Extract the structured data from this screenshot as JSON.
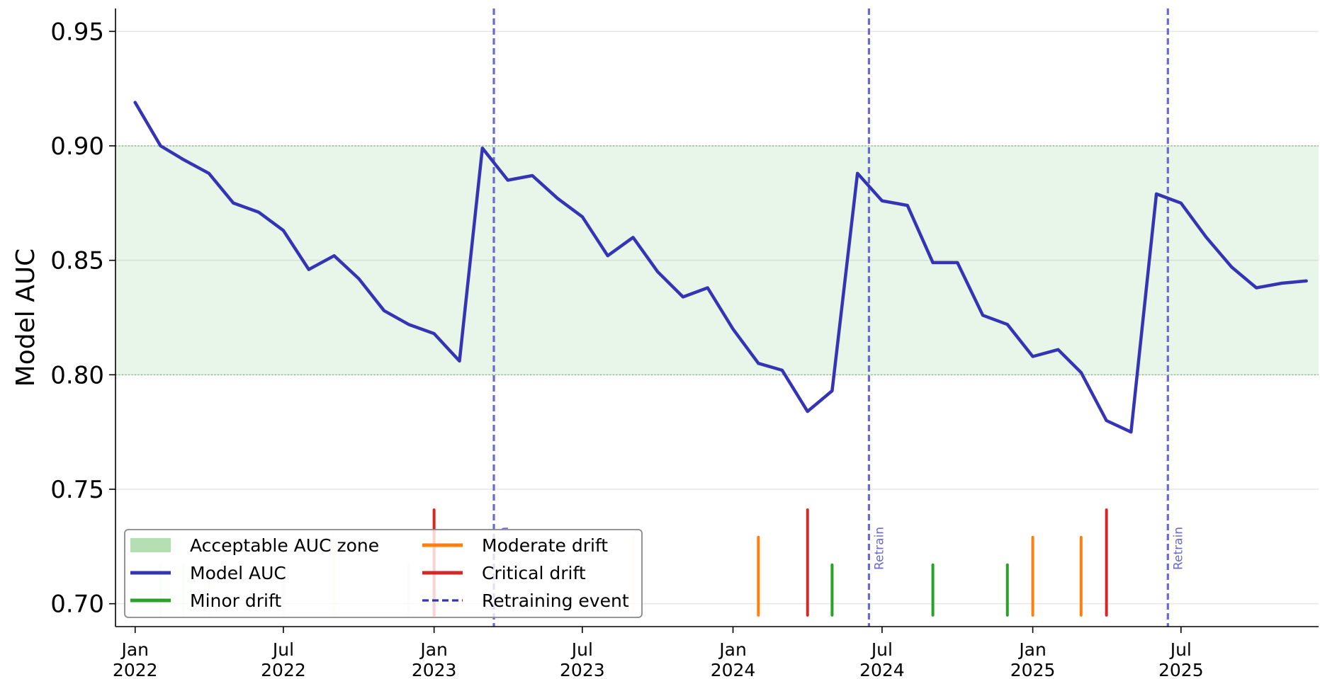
{
  "chart_data": {
    "type": "line",
    "title": "",
    "xlabel": "",
    "ylabel": "Model AUC",
    "x_unit": "month",
    "x_start": "2022-01",
    "xlim": [
      "2021-12-08",
      "2025-12-16"
    ],
    "ylim": [
      0.69,
      0.96
    ],
    "yticks": [
      0.7,
      0.75,
      0.8,
      0.85,
      0.9,
      0.95
    ],
    "xticks": [
      {
        "date": "2022-01",
        "label": [
          "Jan",
          "2022"
        ]
      },
      {
        "date": "2022-07",
        "label": [
          "Jul",
          "2022"
        ]
      },
      {
        "date": "2023-01",
        "label": [
          "Jan",
          "2023"
        ]
      },
      {
        "date": "2023-07",
        "label": [
          "Jul",
          "2023"
        ]
      },
      {
        "date": "2024-01",
        "label": [
          "Jan",
          "2024"
        ]
      },
      {
        "date": "2024-07",
        "label": [
          "Jul",
          "2024"
        ]
      },
      {
        "date": "2025-01",
        "label": [
          "Jan",
          "2025"
        ]
      },
      {
        "date": "2025-07",
        "label": [
          "Jul",
          "2025"
        ]
      }
    ],
    "grid": "horizontal",
    "acceptable_zone": {
      "name": "Acceptable AUC zone",
      "range": [
        0.8,
        0.9
      ],
      "color": "#e8f5e9",
      "edge_color": "#5fb35f"
    },
    "series": [
      {
        "name": "Model AUC",
        "color": "#3434b4",
        "x": [
          "2022-01",
          "2022-02",
          "2022-03",
          "2022-04",
          "2022-05",
          "2022-06",
          "2022-07",
          "2022-08",
          "2022-09",
          "2022-10",
          "2022-11",
          "2022-12",
          "2023-01",
          "2023-02",
          "2023-03",
          "2023-04",
          "2023-05",
          "2023-06",
          "2023-07",
          "2023-08",
          "2023-09",
          "2023-10",
          "2023-11",
          "2023-12",
          "2024-01",
          "2024-02",
          "2024-03",
          "2024-04",
          "2024-05",
          "2024-06",
          "2024-07",
          "2024-08",
          "2024-09",
          "2024-10",
          "2024-11",
          "2024-12",
          "2025-01",
          "2025-02",
          "2025-03",
          "2025-04",
          "2025-05",
          "2025-06",
          "2025-07",
          "2025-08",
          "2025-09",
          "2025-10",
          "2025-11",
          "2025-12"
        ],
        "values": [
          0.919,
          0.9,
          0.894,
          0.888,
          0.875,
          0.871,
          0.863,
          0.846,
          0.852,
          0.842,
          0.828,
          0.822,
          0.818,
          0.806,
          0.899,
          0.885,
          0.887,
          0.877,
          0.869,
          0.852,
          0.86,
          0.845,
          0.834,
          0.838,
          0.82,
          0.805,
          0.802,
          0.784,
          0.793,
          0.888,
          0.876,
          0.874,
          0.849,
          0.849,
          0.826,
          0.822,
          0.808,
          0.811,
          0.801,
          0.78,
          0.775,
          0.879,
          0.875,
          0.86,
          0.847,
          0.838,
          0.84,
          0.841
        ]
      }
    ],
    "drift_events": [
      {
        "date": "2022-02",
        "severity": "minor",
        "faint": true
      },
      {
        "date": "2022-03",
        "severity": "minor",
        "faint": true
      },
      {
        "date": "2022-04",
        "severity": "minor",
        "faint": true
      },
      {
        "date": "2022-07",
        "severity": "minor",
        "faint": true
      },
      {
        "date": "2022-09",
        "severity": "moderate",
        "faint": true
      },
      {
        "date": "2022-12",
        "severity": "minor",
        "faint": true
      },
      {
        "date": "2023-01",
        "severity": "critical",
        "faint": false
      },
      {
        "date": "2023-09",
        "severity": "moderate",
        "faint": true
      },
      {
        "date": "2024-02",
        "severity": "moderate",
        "faint": false
      },
      {
        "date": "2024-04",
        "severity": "critical",
        "faint": false
      },
      {
        "date": "2024-05",
        "severity": "minor",
        "faint": false
      },
      {
        "date": "2024-09",
        "severity": "minor",
        "faint": false
      },
      {
        "date": "2024-12",
        "severity": "minor",
        "faint": false
      },
      {
        "date": "2025-01",
        "severity": "moderate",
        "faint": false
      },
      {
        "date": "2025-03",
        "severity": "moderate",
        "faint": false
      },
      {
        "date": "2025-04",
        "severity": "critical",
        "faint": false
      }
    ],
    "drift_styles": {
      "minor": {
        "color": "#2ca02c",
        "top": 0.717,
        "label": "Minor drift"
      },
      "moderate": {
        "color": "#ff7f0e",
        "top": 0.729,
        "label": "Moderate drift"
      },
      "critical": {
        "color": "#d62728",
        "top": 0.741,
        "label": "Critical drift"
      }
    },
    "drift_bottom": 0.695,
    "retrain_events": [
      {
        "date": "2023-03-15",
        "label": "Retrain",
        "label_clipped": true
      },
      {
        "date": "2024-06-15",
        "label": "Retrain",
        "label_clipped": false
      },
      {
        "date": "2025-06-15",
        "label": "Retrain",
        "label_clipped": false
      }
    ],
    "retrain_color": "#6a6ad0",
    "legend": {
      "position": "lower-left",
      "entries": [
        {
          "label": "Acceptable AUC zone",
          "kind": "patch",
          "color": "#b3dfb3"
        },
        {
          "label": "Moderate drift",
          "kind": "line",
          "color": "#ff7f0e"
        },
        {
          "label": "Model AUC",
          "kind": "line",
          "color": "#3434b4"
        },
        {
          "label": "Critical drift",
          "kind": "line",
          "color": "#d62728"
        },
        {
          "label": "Minor drift",
          "kind": "line",
          "color": "#2ca02c"
        },
        {
          "label": "Retraining event",
          "kind": "dashed",
          "color": "#3434b4"
        }
      ]
    }
  }
}
